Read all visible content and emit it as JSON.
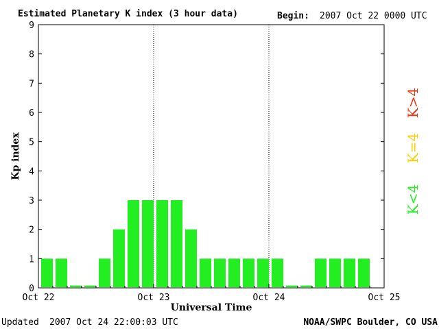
{
  "header": {
    "title": "Estimated Planetary K index (3 hour data)",
    "begin_label": "Begin:",
    "begin_value": "2007 Oct 22 0000 UTC"
  },
  "footer": {
    "updated_label": "Updated",
    "updated_value": "2007 Oct 24 22:00:03 UTC",
    "source": "NOAA/SWPC Boulder, CO USA"
  },
  "legend": {
    "high": "K>4",
    "equal": "K=4",
    "low": "K<4"
  },
  "colors": {
    "low": "#22ee22",
    "equal": "#ffcc00",
    "high": "#ee3311"
  },
  "chart_data": {
    "type": "bar",
    "title": "Estimated Planetary K index (3 hour data)",
    "xlabel": "Universal Time",
    "ylabel": "Kp index",
    "ylim": [
      0,
      9
    ],
    "yticks": [
      0,
      1,
      2,
      3,
      4,
      5,
      6,
      7,
      8,
      9
    ],
    "xtick_labels": [
      "Oct 22",
      "Oct 23",
      "Oct 24",
      "Oct 25"
    ],
    "interval_hours": 3,
    "values": [
      1,
      1,
      0,
      0,
      1,
      2,
      3,
      3,
      3,
      3,
      2,
      1,
      1,
      1,
      1,
      1,
      1,
      0,
      0,
      1,
      1,
      1,
      1
    ],
    "legend_placement": "right"
  }
}
